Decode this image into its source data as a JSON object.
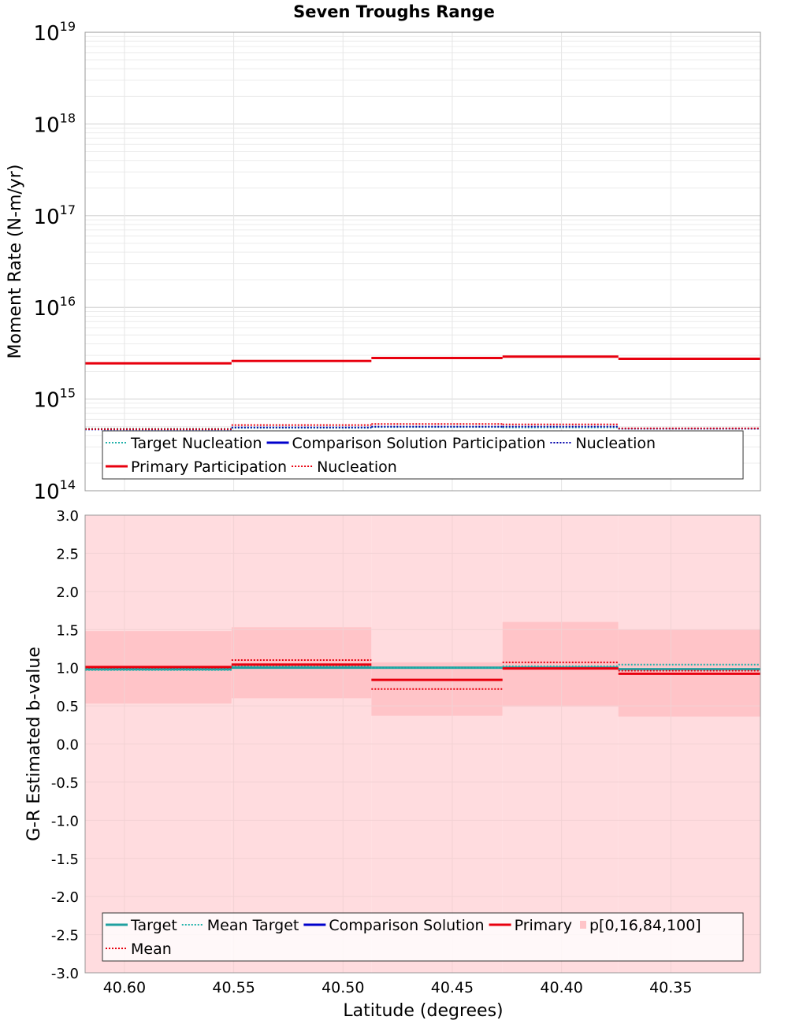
{
  "title": "Seven Troughs Range",
  "xlabel": "Latitude (degrees)",
  "x_ticks": [
    "40.60",
    "40.55",
    "40.50",
    "40.45",
    "40.40",
    "40.35"
  ],
  "chart_data": [
    {
      "type": "line",
      "scale": "log",
      "title": "Seven Troughs Range",
      "ylabel": "Moment Rate (N-m/yr)",
      "xlim": [
        40.618,
        40.309
      ],
      "ylim": [
        100000000000000.0,
        1e+19
      ],
      "y_ticks": [
        {
          "base": "10",
          "exp": "14"
        },
        {
          "base": "10",
          "exp": "15"
        },
        {
          "base": "10",
          "exp": "16"
        },
        {
          "base": "10",
          "exp": "17"
        },
        {
          "base": "10",
          "exp": "18"
        },
        {
          "base": "10",
          "exp": "19"
        }
      ],
      "bins": [
        [
          40.618,
          40.551
        ],
        [
          40.551,
          40.487
        ],
        [
          40.487,
          40.427
        ],
        [
          40.427,
          40.374
        ],
        [
          40.374,
          40.309
        ]
      ],
      "series": [
        {
          "name": "Target Nucleation",
          "color": "#20b2aa",
          "dashed": true,
          "width": 2,
          "values": [
            475000000000000.0,
            485000000000000.0,
            495000000000000.0,
            490000000000000.0,
            475000000000000.0
          ]
        },
        {
          "name": "Comparison Solution Participation",
          "color": "#0000cc",
          "dashed": false,
          "width": 3,
          "values": [
            null,
            null,
            null,
            null,
            null
          ]
        },
        {
          "name": "Nucleation",
          "color": "#0000aa",
          "dashed": true,
          "width": 2,
          "values": [
            465000000000000.0,
            490000000000000.0,
            500000000000000.0,
            500000000000000.0,
            475000000000000.0
          ]
        },
        {
          "name": "Primary Participation",
          "color": "#e8000e",
          "dashed": false,
          "width": 3,
          "values": [
            2450000000000000.0,
            2600000000000000.0,
            2800000000000000.0,
            2900000000000000.0,
            2750000000000000.0
          ]
        },
        {
          "name": "Nucleation",
          "color": "#e8000e",
          "dashed": true,
          "width": 2,
          "values": [
            470000000000000.0,
            520000000000000.0,
            535000000000000.0,
            530000000000000.0,
            480000000000000.0
          ]
        }
      ],
      "legend": {
        "rows": [
          [
            "Target Nucleation",
            "Comparison Solution Participation",
            "Nucleation"
          ],
          [
            "Primary Participation",
            "Nucleation"
          ]
        ]
      }
    },
    {
      "type": "line",
      "title": "",
      "ylabel": "G-R Estimated b-value",
      "xlim": [
        40.618,
        40.309
      ],
      "ylim": [
        -3.0,
        3.0
      ],
      "y_ticks": [
        "3.0",
        "2.5",
        "2.0",
        "1.5",
        "1.0",
        "0.5",
        "0.0",
        "-0.5",
        "-1.0",
        "-1.5",
        "-2.0",
        "-2.5",
        "-3.0"
      ],
      "y_tick_values": [
        3.0,
        2.5,
        2.0,
        1.5,
        1.0,
        0.5,
        0.0,
        -0.5,
        -1.0,
        -1.5,
        -2.0,
        -2.5,
        -3.0
      ],
      "bins": [
        [
          40.618,
          40.551
        ],
        [
          40.551,
          40.487
        ],
        [
          40.487,
          40.427
        ],
        [
          40.427,
          40.374
        ],
        [
          40.374,
          40.309
        ]
      ],
      "bands": {
        "name": "p[0,16,84,100]",
        "outer_color": "#ffdcdf",
        "inner_color": "#ffc4c8",
        "outer": [
          [
            -3.0,
            3.0
          ],
          [
            -3.0,
            3.0
          ],
          [
            -3.0,
            3.0
          ],
          [
            -3.0,
            3.0
          ],
          [
            -3.0,
            3.0
          ]
        ],
        "inner": [
          [
            0.53,
            1.48
          ],
          [
            0.6,
            1.53
          ],
          [
            0.37,
            1.07
          ],
          [
            0.49,
            1.6
          ],
          [
            0.36,
            1.5
          ]
        ]
      },
      "series": [
        {
          "name": "Target",
          "color": "#20a0a0",
          "dashed": false,
          "width": 3,
          "values": [
            0.98,
            1.0,
            1.0,
            1.0,
            0.98
          ]
        },
        {
          "name": "Mean Target",
          "color": "#20b2aa",
          "dashed": true,
          "width": 2,
          "values": [
            0.97,
            1.02,
            1.0,
            1.02,
            1.04
          ]
        },
        {
          "name": "Comparison Solution",
          "color": "#0000cc",
          "dashed": false,
          "width": 3,
          "values": [
            null,
            null,
            null,
            null,
            null
          ]
        },
        {
          "name": "Primary",
          "color": "#e8000e",
          "dashed": false,
          "width": 3,
          "values": [
            1.01,
            1.04,
            0.84,
            0.99,
            0.92
          ]
        },
        {
          "name": "Mean",
          "color": "#e8000e",
          "dashed": true,
          "width": 2,
          "values": [
            1.0,
            1.1,
            0.72,
            1.07,
            0.96
          ]
        }
      ],
      "legend": {
        "rows": [
          [
            "Target",
            "Mean Target",
            "Comparison Solution",
            "Primary",
            "p[0,16,84,100]"
          ],
          [
            "Mean"
          ]
        ]
      }
    }
  ]
}
